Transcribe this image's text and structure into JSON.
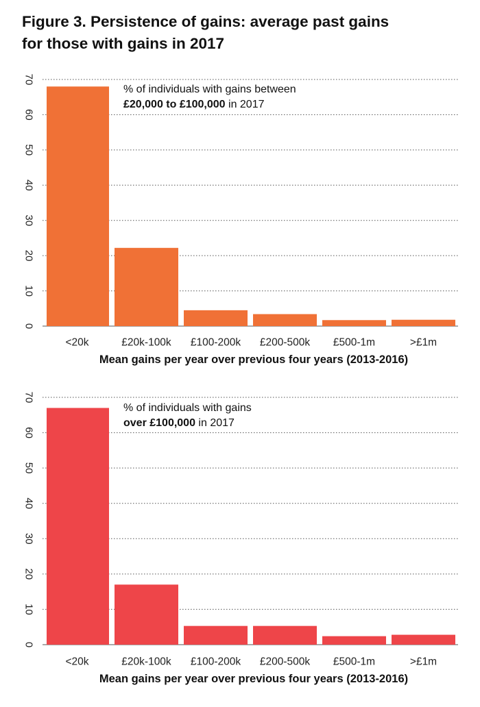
{
  "title_line1": "Figure 3. Persistence of gains: average past gains",
  "title_line2": "for those with gains in 2017",
  "chart_data": [
    {
      "type": "bar",
      "categories": [
        "<20k",
        "£20k-100k",
        "£100-200k",
        "£200-500k",
        "£500-1m",
        ">£1m"
      ],
      "values": [
        68,
        22.2,
        4.5,
        3.4,
        1.7,
        1.8
      ],
      "color": "#f07136",
      "ylim": [
        0,
        70
      ],
      "yticks": [
        0,
        10,
        20,
        30,
        40,
        50,
        60,
        70
      ],
      "xlabel": "Mean gains per year over previous four years (2013-2016)",
      "annotation": {
        "line1": "% of individuals with gains between",
        "line2_bold": "£20,000 to £100,000",
        "line2_rest": " in 2017"
      }
    },
    {
      "type": "bar",
      "categories": [
        "<20k",
        "£20k-100k",
        "£100-200k",
        "£200-500k",
        "£500-1m",
        ">£1m"
      ],
      "values": [
        67,
        17,
        5.3,
        5.3,
        2.4,
        2.8
      ],
      "color": "#ee4549",
      "ylim": [
        0,
        70
      ],
      "yticks": [
        0,
        10,
        20,
        30,
        40,
        50,
        60,
        70
      ],
      "xlabel": "Mean gains per year over previous four years (2013-2016)",
      "annotation": {
        "line1": "% of individuals with gains",
        "line2_bold": "over £100,000",
        "line2_rest": " in 2017"
      }
    }
  ]
}
